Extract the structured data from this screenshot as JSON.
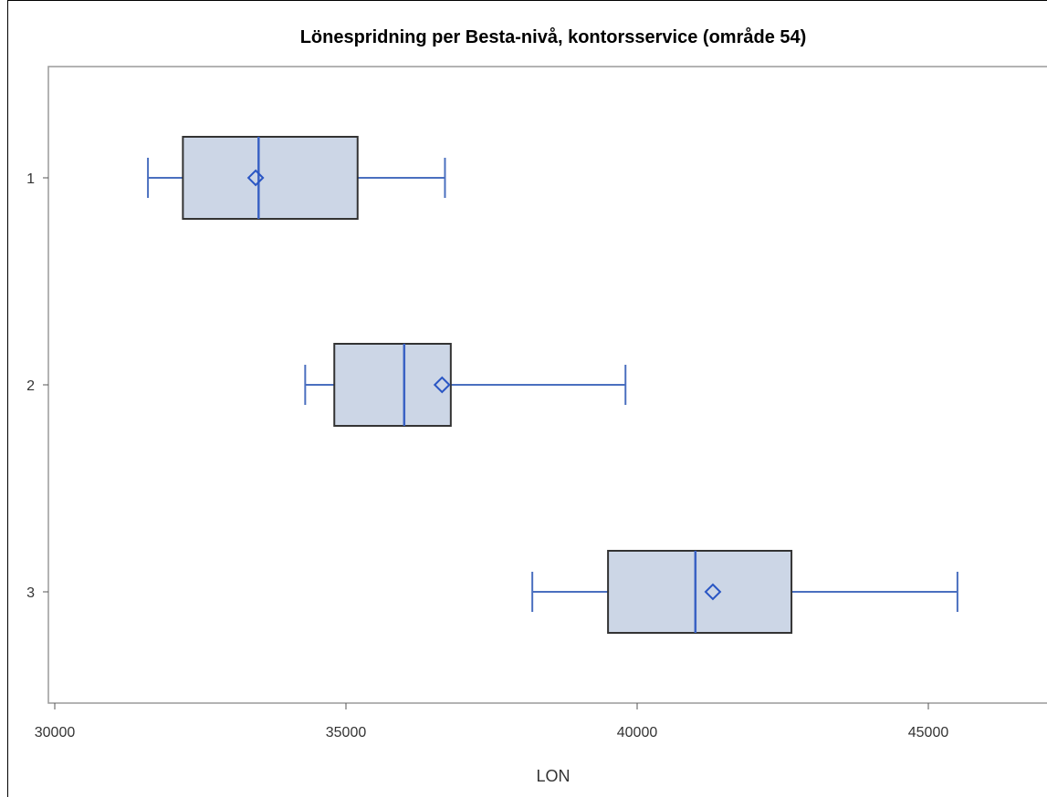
{
  "chart_data": {
    "type": "boxplot",
    "orientation": "horizontal",
    "title": "Lönespridning per Besta-nivå, kontorsservice (område 54)",
    "xlabel": "LON",
    "ylabel": "",
    "xlim": [
      30000,
      47000
    ],
    "xticks": [
      30000,
      35000,
      40000,
      45000
    ],
    "categories": [
      "1",
      "2",
      "3"
    ],
    "boxes": [
      {
        "category": "1",
        "min": 31600,
        "q1": 32200,
        "median": 33500,
        "q3": 35200,
        "max": 36700,
        "mean": 33450
      },
      {
        "category": "2",
        "min": 34300,
        "q1": 34800,
        "median": 36000,
        "q3": 36800,
        "max": 39800,
        "mean": 36650
      },
      {
        "category": "3",
        "min": 38200,
        "q1": 39500,
        "median": 41000,
        "q3": 42650,
        "max": 45500,
        "mean": 41300
      }
    ],
    "colors": {
      "box_fill": "#ccd6e6",
      "box_outline": "#333333",
      "whisker": "#4a6fbf",
      "median": "#3a62c4",
      "mean_marker": "#2a56c4"
    }
  }
}
